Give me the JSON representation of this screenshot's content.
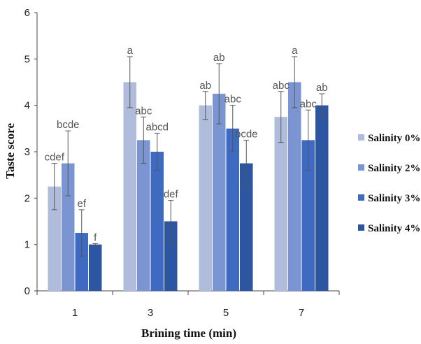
{
  "chart_data": {
    "type": "bar",
    "xlabel": "Brining time (min)",
    "ylabel": "Taste score",
    "ylim": [
      0,
      6
    ],
    "yticks": [
      "0",
      "1",
      "2",
      "3",
      "4",
      "5",
      "6"
    ],
    "categories": [
      "1",
      "3",
      "5",
      "7"
    ],
    "legend_position": "right",
    "series": [
      {
        "name": "Salinity 0%",
        "color": "#b0bcdc",
        "values": [
          2.25,
          4.5,
          4.0,
          3.75
        ],
        "errors": [
          0.5,
          0.55,
          0.3,
          0.55
        ],
        "labels": [
          "cdef",
          "a",
          "ab",
          "abc"
        ]
      },
      {
        "name": "Salinity 2%",
        "color": "#7a95d1",
        "values": [
          2.75,
          3.25,
          4.25,
          4.5
        ],
        "errors": [
          0.7,
          0.5,
          0.65,
          0.55
        ],
        "labels": [
          "bcde",
          "abc",
          "ab",
          "a"
        ]
      },
      {
        "name": "Salinity 3%",
        "color": "#3f6ac2",
        "values": [
          1.25,
          3.0,
          3.5,
          3.25
        ],
        "errors": [
          0.5,
          0.4,
          0.5,
          0.65
        ],
        "labels": [
          "ef",
          "abcd",
          "abc",
          "abc"
        ]
      },
      {
        "name": "Salinity 4%",
        "color": "#2c55a2",
        "values": [
          1.0,
          1.5,
          2.75,
          4.0
        ],
        "errors": [
          0.02,
          0.45,
          0.5,
          0.25
        ],
        "labels": [
          "f",
          "def",
          "bcde",
          "ab"
        ]
      }
    ]
  }
}
